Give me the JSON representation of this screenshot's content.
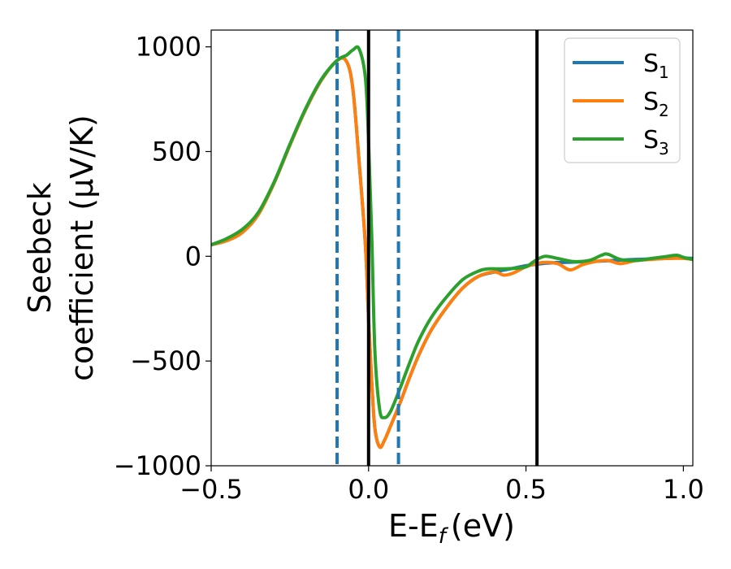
{
  "chart_data": {
    "type": "line",
    "xlabel": "E-E",
    "xlabel_sub": "f",
    "xlabel_unit": "(eV)",
    "ylabel_line1": "Seebeck",
    "ylabel_line2": "coefficient (μV/K)",
    "xlim": [
      -0.5,
      1.03
    ],
    "ylim": [
      -1000,
      1080
    ],
    "xticks": [
      -0.5,
      0.0,
      0.5,
      1.0
    ],
    "xtick_labels": [
      "−0.5",
      "0.0",
      "0.5",
      "1.0"
    ],
    "yticks": [
      -1000,
      -500,
      0,
      500,
      1000
    ],
    "ytick_labels": [
      "−1000",
      "−500",
      "0",
      "500",
      "1000"
    ],
    "grid": false,
    "legend_position": "top-right",
    "vlines": [
      {
        "x": -0.1,
        "style": "dashed",
        "color": "#1f77b4"
      },
      {
        "x": 0.095,
        "style": "dashed",
        "color": "#1f77b4"
      },
      {
        "x": 0.0,
        "style": "solid",
        "color": "#000000"
      },
      {
        "x": 0.535,
        "style": "solid",
        "color": "#000000"
      }
    ],
    "series": [
      {
        "name": "S",
        "sub": "1",
        "color": "#1f77b4",
        "x": [
          -0.5,
          -0.45,
          -0.4,
          -0.35,
          -0.3,
          -0.25,
          -0.2,
          -0.15,
          -0.1,
          -0.07,
          -0.05,
          -0.03,
          -0.01,
          0.0,
          0.01,
          0.02,
          0.035,
          0.05,
          0.07,
          0.1,
          0.13,
          0.16,
          0.2,
          0.25,
          0.3,
          0.35,
          0.4,
          0.45,
          0.5,
          0.55,
          0.6,
          0.65,
          0.7,
          0.75,
          0.8,
          0.85,
          0.9,
          0.95,
          1.0,
          1.03
        ],
        "y": [
          55,
          75,
          115,
          200,
          350,
          530,
          700,
          840,
          935,
          930,
          800,
          450,
          50,
          -300,
          -600,
          -820,
          -910,
          -880,
          -810,
          -700,
          -580,
          -470,
          -350,
          -240,
          -150,
          -95,
          -75,
          -60,
          -45,
          -35,
          -30,
          -28,
          -25,
          -22,
          -18,
          -15,
          -12,
          -10,
          -8,
          -10
        ]
      },
      {
        "name": "S",
        "sub": "2",
        "color": "#ff7f0e",
        "x": [
          -0.5,
          -0.45,
          -0.4,
          -0.35,
          -0.3,
          -0.25,
          -0.2,
          -0.15,
          -0.1,
          -0.07,
          -0.05,
          -0.03,
          -0.01,
          0.0,
          0.01,
          0.02,
          0.035,
          0.05,
          0.07,
          0.1,
          0.13,
          0.16,
          0.2,
          0.25,
          0.3,
          0.35,
          0.4,
          0.43,
          0.46,
          0.5,
          0.55,
          0.6,
          0.64,
          0.68,
          0.72,
          0.76,
          0.8,
          0.85,
          0.9,
          0.95,
          1.0,
          1.03
        ],
        "y": [
          55,
          75,
          115,
          200,
          350,
          530,
          700,
          840,
          935,
          930,
          800,
          450,
          50,
          -300,
          -600,
          -820,
          -910,
          -880,
          -810,
          -700,
          -580,
          -470,
          -350,
          -240,
          -150,
          -95,
          -75,
          -90,
          -80,
          -50,
          -30,
          -35,
          -65,
          -40,
          -25,
          -20,
          -35,
          -20,
          -15,
          -10,
          -10,
          -15
        ]
      },
      {
        "name": "S",
        "sub": "3",
        "color": "#2ca02c",
        "x": [
          -0.5,
          -0.45,
          -0.4,
          -0.35,
          -0.3,
          -0.25,
          -0.2,
          -0.15,
          -0.1,
          -0.07,
          -0.05,
          -0.03,
          -0.01,
          0.0,
          0.01,
          0.02,
          0.035,
          0.05,
          0.07,
          0.1,
          0.13,
          0.16,
          0.2,
          0.25,
          0.3,
          0.35,
          0.38,
          0.42,
          0.46,
          0.5,
          0.53,
          0.56,
          0.6,
          0.65,
          0.7,
          0.74,
          0.76,
          0.8,
          0.85,
          0.9,
          0.95,
          0.98,
          1.0,
          1.03
        ],
        "y": [
          55,
          85,
          130,
          210,
          355,
          535,
          705,
          845,
          935,
          960,
          985,
          990,
          850,
          550,
          100,
          -450,
          -730,
          -770,
          -740,
          -630,
          -510,
          -400,
          -290,
          -190,
          -110,
          -70,
          -60,
          -60,
          -58,
          -50,
          -20,
          0,
          -10,
          -25,
          -20,
          5,
          10,
          -15,
          -20,
          -10,
          0,
          5,
          -5,
          -15
        ]
      }
    ]
  }
}
